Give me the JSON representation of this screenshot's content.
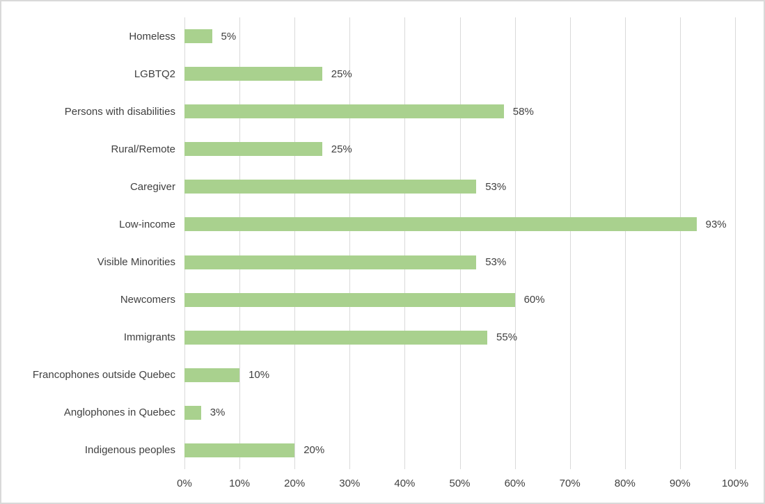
{
  "chart_data": {
    "type": "bar",
    "orientation": "horizontal",
    "title": "",
    "xlabel": "",
    "ylabel": "",
    "categories": [
      "Homeless",
      "LGBTQ2",
      "Persons with disabilities",
      "Rural/Remote",
      "Caregiver",
      "Low-income",
      "Visible Minorities",
      "Newcomers",
      "Immigrants",
      "Francophones outside Quebec",
      "Anglophones in Quebec",
      "Indigenous peoples"
    ],
    "values": [
      5,
      25,
      58,
      25,
      53,
      93,
      53,
      60,
      55,
      10,
      3,
      20
    ],
    "value_labels": [
      "5%",
      "25%",
      "58%",
      "25%",
      "53%",
      "93%",
      "53%",
      "60%",
      "55%",
      "10%",
      "3%",
      "20%"
    ],
    "x_ticks": [
      "0%",
      "10%",
      "20%",
      "30%",
      "40%",
      "50%",
      "60%",
      "70%",
      "80%",
      "90%",
      "100%"
    ],
    "xlim": [
      0,
      100
    ],
    "grid": "vertical-only",
    "legend": "none",
    "colors": {
      "bar": "#a9d18e",
      "gridline": "#d9d9d9",
      "frame_border": "#d9d9d9",
      "text": "#404040",
      "background": "#ffffff"
    }
  }
}
